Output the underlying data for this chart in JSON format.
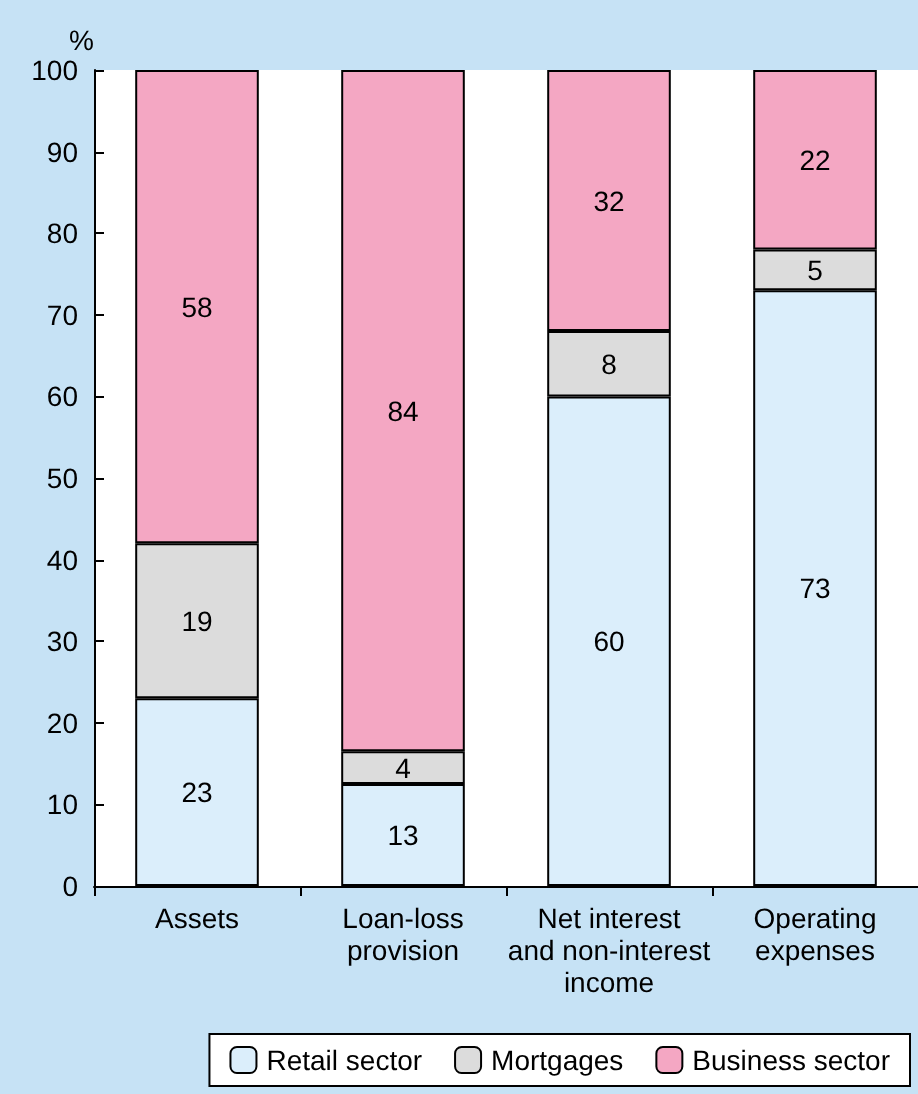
{
  "chart_data": {
    "type": "bar",
    "ylabel": "%",
    "stacked": true,
    "legend": "bottom",
    "grid": false,
    "categories": [
      "Assets",
      "Loan-loss\nprovision",
      "Net interest\nand non-interest\nincome",
      "Operating\nexpenses"
    ],
    "ylim": [
      0,
      100
    ],
    "yticks": [
      0,
      10,
      20,
      30,
      40,
      50,
      60,
      70,
      80,
      90,
      100
    ],
    "series": [
      {
        "name": "Retail sector",
        "color": "#dbeefb",
        "values": [
          23,
          12.5,
          60,
          73
        ],
        "value_labels": [
          "23",
          "13",
          "60",
          "73"
        ]
      },
      {
        "name": "Mortgages",
        "color": "#dcdcdc",
        "values": [
          19,
          4,
          8,
          5
        ],
        "value_labels": [
          "19",
          "4",
          "8",
          "5"
        ]
      },
      {
        "name": "Business sector",
        "color": "#f4a7c3",
        "values": [
          58,
          83.5,
          32,
          22
        ],
        "value_labels": [
          "58",
          "84",
          "32",
          "22"
        ]
      }
    ]
  }
}
